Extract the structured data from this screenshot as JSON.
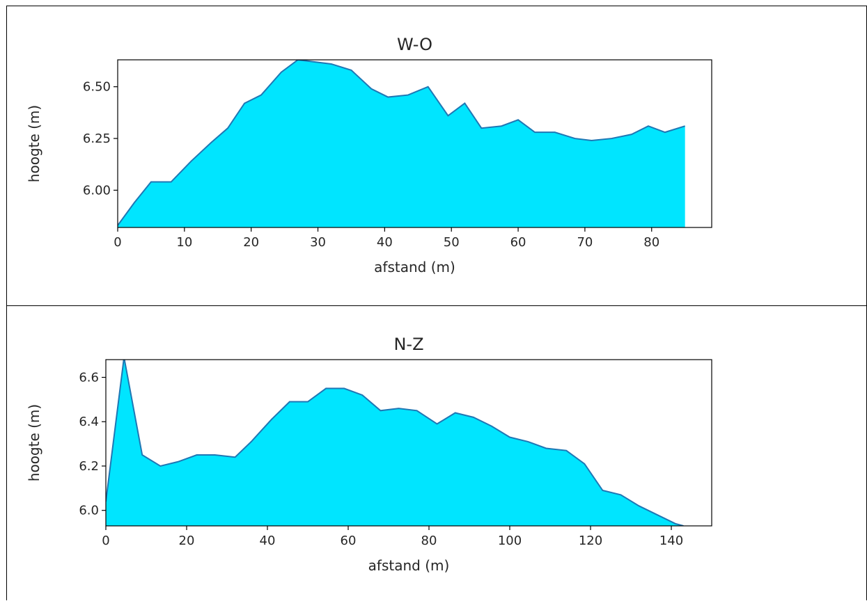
{
  "colors": {
    "fill": "#00e5ff",
    "line": "#1f77b4",
    "axis": "#000000"
  },
  "chart_data": [
    {
      "type": "area",
      "title": "W-O",
      "xlabel": "afstand (m)",
      "ylabel": "hoogte (m)",
      "xlim": [
        0,
        89
      ],
      "ylim": [
        5.82,
        6.63
      ],
      "xticks": [
        0,
        10,
        20,
        30,
        40,
        50,
        60,
        70,
        80
      ],
      "xtick_labels": [
        "0",
        "10",
        "20",
        "30",
        "40",
        "50",
        "60",
        "70",
        "80"
      ],
      "yticks": [
        6.0,
        6.25,
        6.5
      ],
      "ytick_labels": [
        "6.00",
        "6.25",
        "6.50"
      ],
      "grid": false,
      "x": [
        0,
        2.5,
        5,
        8,
        11,
        14,
        16.5,
        19,
        21.5,
        24.5,
        27,
        29.5,
        32,
        35,
        38,
        40.5,
        43.5,
        46.5,
        49.5,
        52,
        54.5,
        57.5,
        60,
        62.5,
        65.5,
        68.5,
        71,
        74,
        77,
        79.5,
        82,
        85
      ],
      "y": [
        5.83,
        5.94,
        6.04,
        6.04,
        6.14,
        6.23,
        6.3,
        6.42,
        6.46,
        6.57,
        6.63,
        6.62,
        6.61,
        6.58,
        6.49,
        6.45,
        6.46,
        6.5,
        6.36,
        6.42,
        6.3,
        6.31,
        6.34,
        6.28,
        6.28,
        6.25,
        6.24,
        6.25,
        6.27,
        6.31,
        6.28,
        6.31
      ]
    },
    {
      "type": "area",
      "title": "N-Z",
      "xlabel": "afstand (m)",
      "ylabel": "hoogte (m)",
      "xlim": [
        0,
        150
      ],
      "ylim": [
        5.93,
        6.68
      ],
      "xticks": [
        0,
        20,
        40,
        60,
        80,
        100,
        120,
        140
      ],
      "xtick_labels": [
        "0",
        "20",
        "40",
        "60",
        "80",
        "100",
        "120",
        "140"
      ],
      "yticks": [
        6.0,
        6.2,
        6.4,
        6.6
      ],
      "ytick_labels": [
        "6.0",
        "6.2",
        "6.4",
        "6.6"
      ],
      "grid": false,
      "x": [
        0,
        4.5,
        9,
        13.5,
        18,
        22.5,
        27,
        32,
        36,
        41,
        45.5,
        50,
        54.5,
        59,
        63.5,
        68,
        72.5,
        77,
        82,
        86.5,
        91,
        95.5,
        100,
        104.5,
        109,
        114,
        118.5,
        123,
        127.5,
        132,
        136.5,
        141,
        143
      ],
      "y": [
        6.04,
        6.69,
        6.25,
        6.2,
        6.22,
        6.25,
        6.25,
        6.24,
        6.31,
        6.41,
        6.49,
        6.49,
        6.55,
        6.55,
        6.52,
        6.45,
        6.46,
        6.45,
        6.39,
        6.44,
        6.42,
        6.38,
        6.33,
        6.31,
        6.28,
        6.27,
        6.21,
        6.09,
        6.07,
        6.02,
        5.98,
        5.94,
        5.93
      ]
    }
  ]
}
